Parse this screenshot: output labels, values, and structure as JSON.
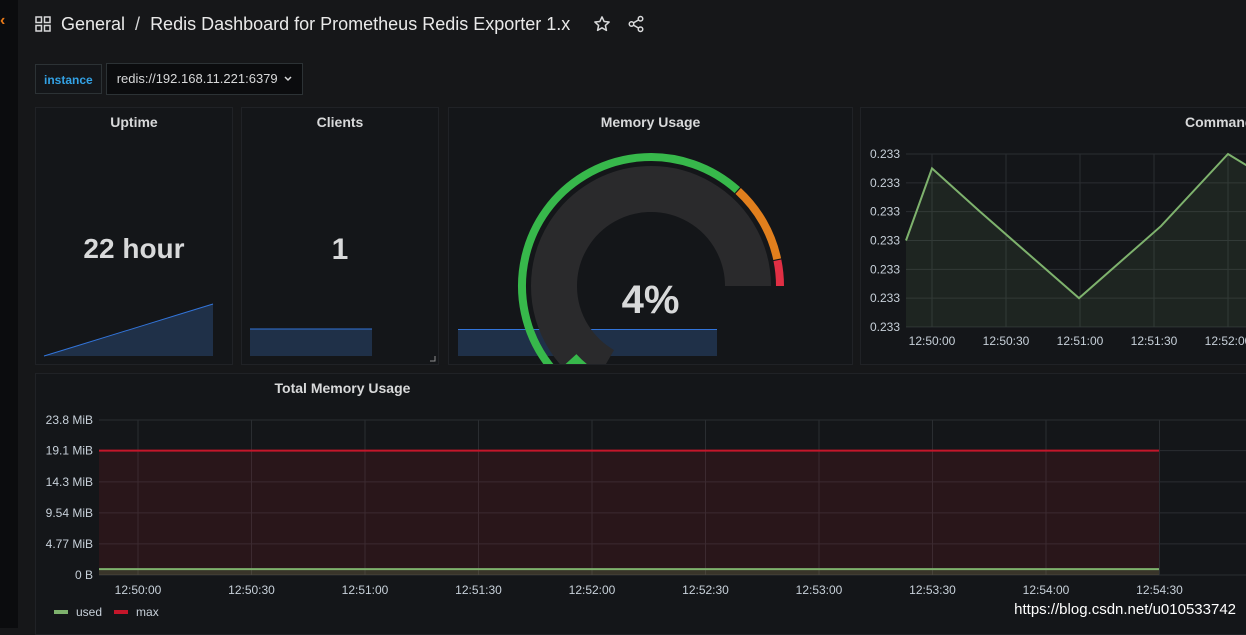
{
  "breadcrumb": {
    "folder": "General",
    "separator": "/",
    "dashboard": "Redis Dashboard for Prometheus Redis Exporter 1.x"
  },
  "icons": {
    "apps": "grid-icon",
    "star": "star-icon",
    "share": "share-icon",
    "dropdown": "chevron-down-icon"
  },
  "variables": {
    "label": "instance",
    "value": "redis://192.168.11.221:6379"
  },
  "panels": {
    "uptime": {
      "title": "Uptime",
      "value": "22 hour"
    },
    "clients": {
      "title": "Clients",
      "value": "1"
    },
    "memory_usage": {
      "title": "Memory Usage",
      "value": "4%"
    },
    "commands": {
      "title": "Command"
    },
    "total_memory": {
      "title": "Total Memory Usage"
    }
  },
  "colors": {
    "background": "#161719",
    "panel": "#141619",
    "green": "#37b84b",
    "orange": "#e17f1d",
    "red": "#e02f44",
    "line_green": "#7eb26d",
    "max_red": "#c4162a",
    "blue": "#33a2e5"
  },
  "chart_data": [
    {
      "type": "area",
      "title": "Uptime",
      "sparkline": true,
      "y": [
        0,
        1,
        2,
        3,
        4,
        5
      ]
    },
    {
      "type": "area",
      "title": "Clients",
      "sparkline": true,
      "y": [
        1,
        1,
        1,
        1,
        1,
        1
      ]
    },
    {
      "type": "gauge",
      "title": "Memory Usage",
      "value": 4,
      "unit": "%",
      "range": [
        0,
        100
      ],
      "thresholds": [
        {
          "from": 0,
          "to": 80,
          "color": "#37b84b"
        },
        {
          "from": 80,
          "to": 95,
          "color": "#e17f1d"
        },
        {
          "from": 95,
          "to": 100,
          "color": "#e02f44"
        }
      ]
    },
    {
      "type": "line",
      "title": "Command",
      "x": [
        "12:49:50",
        "12:50:00",
        "12:50:30",
        "12:51:00",
        "12:51:30",
        "12:52:00",
        "12:52:10"
      ],
      "x_ticks": [
        "12:50:00",
        "12:50:30",
        "12:51:00",
        "12:51:30",
        "12:52:00"
      ],
      "y_tick_labels": [
        "0.233",
        "0.233",
        "0.233",
        "0.233",
        "0.233",
        "0.233",
        "0.233"
      ],
      "series": [
        {
          "values": [
            0.2331,
            0.23335,
            0.2332,
            0.2329,
            0.23315,
            0.2334,
            0.23333
          ]
        }
      ],
      "ylim": [
        0.2328,
        0.2334
      ],
      "grid": true
    },
    {
      "type": "line",
      "title": "Total Memory Usage",
      "x_ticks": [
        "12:50:00",
        "12:50:30",
        "12:51:00",
        "12:51:30",
        "12:52:00",
        "12:52:30",
        "12:53:00",
        "12:53:30",
        "12:54:00",
        "12:54:30"
      ],
      "y_ticks": [
        "0 B",
        "4.77 MiB",
        "9.54 MiB",
        "14.3 MiB",
        "19.1 MiB",
        "23.8 MiB"
      ],
      "ylim": [
        0,
        23.8
      ],
      "series": [
        {
          "name": "used",
          "color": "#7eb26d",
          "values": [
            0.9,
            0.9,
            0.9,
            0.9,
            0.9,
            0.9,
            0.9,
            0.9,
            0.9,
            0.9
          ]
        },
        {
          "name": "max",
          "color": "#c4162a",
          "values": [
            19.1,
            19.1,
            19.1,
            19.1,
            19.1,
            19.1,
            19.1,
            19.1,
            19.1,
            19.1
          ]
        }
      ],
      "legend": "bottom-left",
      "grid": true
    }
  ],
  "watermark": "https://blog.csdn.net/u010533742"
}
